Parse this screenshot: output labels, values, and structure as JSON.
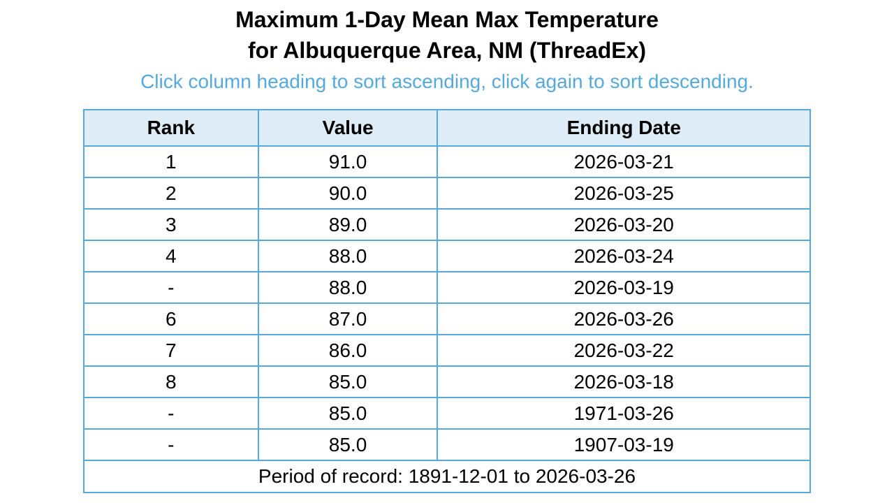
{
  "page": {
    "title_line1": "Maximum 1-Day Mean Max Temperature",
    "title_line2": "for Albuquerque Area, NM (ThreadEx)",
    "subtitle": "Click column heading to sort ascending, click again to sort descending."
  },
  "colors": {
    "accent_blue": "#55a9dc",
    "header_bg": "#ddecf7",
    "text": "#000000"
  },
  "table": {
    "columns": [
      "Rank",
      "Value",
      "Ending Date"
    ],
    "rows": [
      {
        "rank": "1",
        "value": "91.0",
        "date": "2026-03-21"
      },
      {
        "rank": "2",
        "value": "90.0",
        "date": "2026-03-25"
      },
      {
        "rank": "3",
        "value": "89.0",
        "date": "2026-03-20"
      },
      {
        "rank": "4",
        "value": "88.0",
        "date": "2026-03-24"
      },
      {
        "rank": "-",
        "value": "88.0",
        "date": "2026-03-19"
      },
      {
        "rank": "6",
        "value": "87.0",
        "date": "2026-03-26"
      },
      {
        "rank": "7",
        "value": "86.0",
        "date": "2026-03-22"
      },
      {
        "rank": "8",
        "value": "85.0",
        "date": "2026-03-18"
      },
      {
        "rank": "-",
        "value": "85.0",
        "date": "1971-03-26"
      },
      {
        "rank": "-",
        "value": "85.0",
        "date": "1907-03-19"
      }
    ],
    "footer": "Period of record: 1891-12-01 to 2026-03-26"
  },
  "chart_data": {
    "type": "table",
    "title": "Maximum 1-Day Mean Max Temperature for Albuquerque Area, NM (ThreadEx)",
    "subtitle": "Click column heading to sort ascending, click again to sort descending.",
    "columns": [
      "Rank",
      "Value",
      "Ending Date"
    ],
    "rows": [
      [
        "1",
        "91.0",
        "2026-03-21"
      ],
      [
        "2",
        "90.0",
        "2026-03-25"
      ],
      [
        "3",
        "89.0",
        "2026-03-20"
      ],
      [
        "4",
        "88.0",
        "2026-03-24"
      ],
      [
        "-",
        "88.0",
        "2026-03-19"
      ],
      [
        "6",
        "87.0",
        "2026-03-26"
      ],
      [
        "7",
        "86.0",
        "2026-03-22"
      ],
      [
        "8",
        "85.0",
        "2026-03-18"
      ],
      [
        "-",
        "85.0",
        "1971-03-26"
      ],
      [
        "-",
        "85.0",
        "1907-03-19"
      ]
    ],
    "period_of_record": "1891-12-01 to 2026-03-26"
  }
}
